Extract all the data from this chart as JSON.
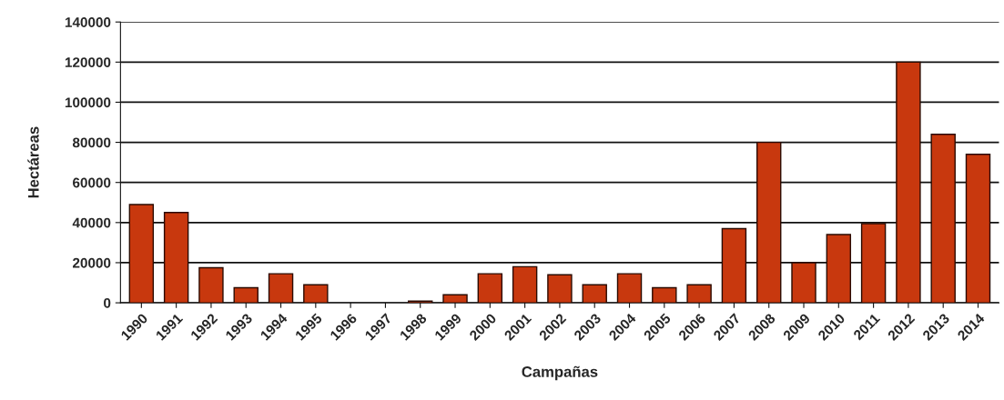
{
  "chart_data": {
    "type": "bar",
    "xlabel": "Campañas",
    "ylabel": "Hectáreas",
    "categories": [
      "1990",
      "1991",
      "1992",
      "1993",
      "1994",
      "1995",
      "1996",
      "1997",
      "1998",
      "1999",
      "2000",
      "2001",
      "2002",
      "2003",
      "2004",
      "2005",
      "2006",
      "2007",
      "2008",
      "2009",
      "2010",
      "2011",
      "2012",
      "2013",
      "2014"
    ],
    "values": [
      49000,
      45000,
      17500,
      7500,
      14500,
      9000,
      0,
      0,
      800,
      4000,
      14500,
      18000,
      14000,
      9000,
      14500,
      7500,
      9000,
      37000,
      80000,
      20000,
      34000,
      39500,
      120000,
      84000,
      74000
    ],
    "color": "#c8380e",
    "ylim": [
      0,
      140000
    ],
    "yticks": [
      0,
      20000,
      40000,
      60000,
      80000,
      100000,
      120000,
      140000
    ],
    "grid": "y",
    "legend": false
  }
}
